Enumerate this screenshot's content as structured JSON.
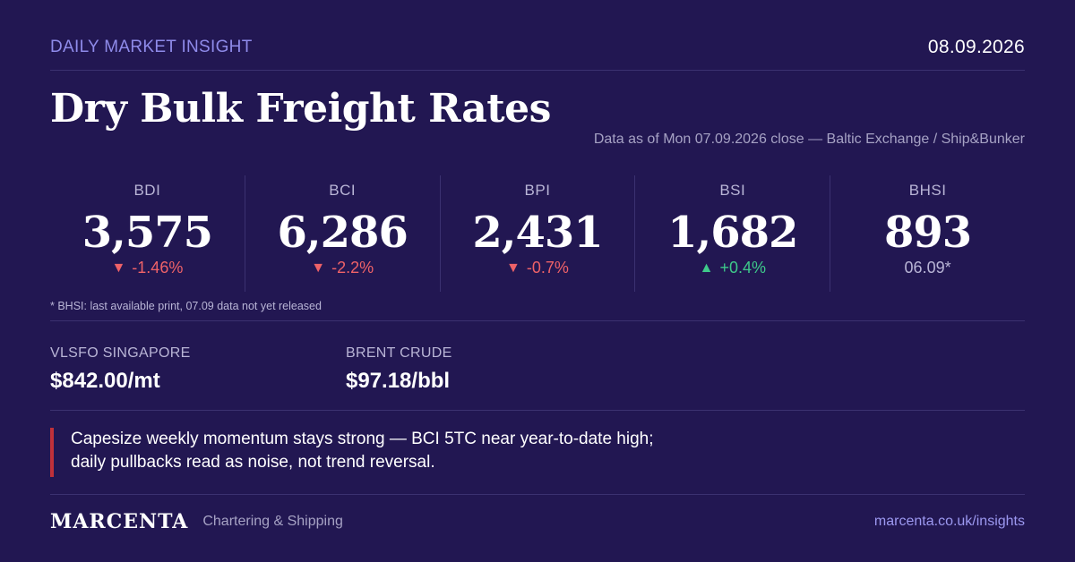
{
  "header": {
    "kicker": "DAILY MARKET INSIGHT",
    "date": "08.09.2026",
    "title": "Dry Bulk Freight Rates",
    "source": "Data as of Mon 07.09.2026 close — Baltic Exchange / Ship&Bunker"
  },
  "indices": [
    {
      "name": "BDI",
      "value": "3,575",
      "direction": "down",
      "arrow": "▼",
      "change": "-1.46%"
    },
    {
      "name": "BCI",
      "value": "6,286",
      "direction": "down",
      "arrow": "▼",
      "change": "-2.2%"
    },
    {
      "name": "BPI",
      "value": "2,431",
      "direction": "down",
      "arrow": "▼",
      "change": "-0.7%"
    },
    {
      "name": "BSI",
      "value": "1,682",
      "direction": "up",
      "arrow": "▲",
      "change": "+0.4%"
    },
    {
      "name": "BHSI",
      "value": "893",
      "direction": "neutral",
      "arrow": "",
      "change": "06.09*"
    }
  ],
  "footnote": "* BHSI: last available print, 07.09 data not yet released",
  "commodities": [
    {
      "label": "VLSFO SINGAPORE",
      "value": "$842.00/mt"
    },
    {
      "label": "BRENT CRUDE",
      "value": "$97.18/bbl"
    }
  ],
  "quote": "Capesize weekly momentum stays strong — BCI 5TC near year-to-date high; daily pullbacks read as noise, not trend reversal.",
  "footer": {
    "brand": "MARCENTA",
    "tagline": "Chartering & Shipping",
    "site": "marcenta.co.uk/insights"
  },
  "colors": {
    "background": "#221752",
    "accent": "#8f8bea",
    "down": "#ef6268",
    "up": "#3ec98a",
    "quote_bar": "#c0313a"
  }
}
